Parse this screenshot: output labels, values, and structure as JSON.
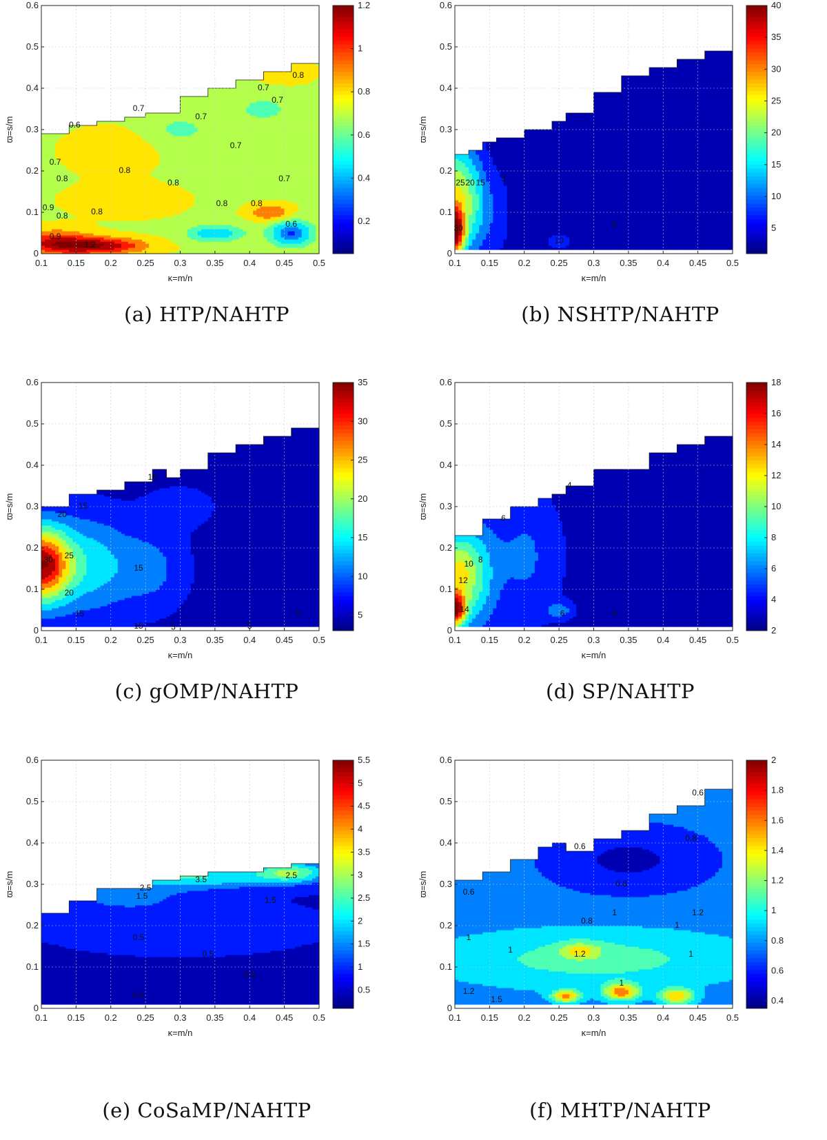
{
  "chart_data": [
    {
      "type": "heatmap",
      "caption": "(a) HTP/NAHTP",
      "xlabel": "κ=m/n",
      "ylabel": "ϖ=s/m",
      "xlim": [
        0.1,
        0.5
      ],
      "ylim": [
        0,
        0.6
      ],
      "x_ticks": [
        "0.1",
        "0.15",
        "0.2",
        "0.25",
        "0.3",
        "0.35",
        "0.4",
        "0.45",
        "0.5"
      ],
      "y_ticks": [
        "0",
        "0.1",
        "0.2",
        "0.3",
        "0.4",
        "0.5",
        "0.6"
      ],
      "colorbar": {
        "min": 0.05,
        "max": 1.2,
        "ticks": [
          "0.2",
          "0.4",
          "0.6",
          "0.8",
          "1",
          "1.2"
        ],
        "tick_values": [
          0.2,
          0.4,
          0.6,
          0.8,
          1,
          1.2
        ]
      },
      "boundary": [
        [
          0.1,
          0.29
        ],
        [
          0.14,
          0.31
        ],
        [
          0.18,
          0.32
        ],
        [
          0.22,
          0.33
        ],
        [
          0.25,
          0.34
        ],
        [
          0.3,
          0.38
        ],
        [
          0.34,
          0.4
        ],
        [
          0.38,
          0.42
        ],
        [
          0.42,
          0.44
        ],
        [
          0.46,
          0.46
        ],
        [
          0.5,
          0.47
        ]
      ],
      "ymin": 0.0,
      "base": 0.72,
      "blobs": [
        [
          0.18,
          0.02,
          0.07,
          0.02,
          0.45
        ],
        [
          0.12,
          0.03,
          0.05,
          0.03,
          0.3
        ],
        [
          0.43,
          0.1,
          0.03,
          0.02,
          0.25
        ],
        [
          0.46,
          0.05,
          0.03,
          0.03,
          -0.45
        ],
        [
          0.35,
          0.05,
          0.04,
          0.02,
          -0.3
        ],
        [
          0.2,
          0.25,
          0.06,
          0.05,
          0.12
        ],
        [
          0.22,
          0.13,
          0.08,
          0.04,
          0.1
        ],
        [
          0.42,
          0.35,
          0.05,
          0.04,
          -0.12
        ],
        [
          0.3,
          0.3,
          0.05,
          0.04,
          -0.12
        ],
        [
          0.45,
          0.44,
          0.04,
          0.03,
          0.1
        ]
      ],
      "contour_labels": [
        {
          "x": 0.148,
          "y": 0.31,
          "text": "0.6"
        },
        {
          "x": 0.24,
          "y": 0.35,
          "text": "0.7"
        },
        {
          "x": 0.33,
          "y": 0.33,
          "text": "0.7"
        },
        {
          "x": 0.12,
          "y": 0.22,
          "text": "0.7"
        },
        {
          "x": 0.13,
          "y": 0.18,
          "text": "0.8"
        },
        {
          "x": 0.22,
          "y": 0.2,
          "text": "0.8"
        },
        {
          "x": 0.29,
          "y": 0.17,
          "text": "0.8"
        },
        {
          "x": 0.18,
          "y": 0.1,
          "text": "0.8"
        },
        {
          "x": 0.38,
          "y": 0.26,
          "text": "0.7"
        },
        {
          "x": 0.44,
          "y": 0.37,
          "text": "0.7"
        },
        {
          "x": 0.42,
          "y": 0.4,
          "text": "0.7"
        },
        {
          "x": 0.47,
          "y": 0.43,
          "text": "0.8"
        },
        {
          "x": 0.11,
          "y": 0.11,
          "text": "0.9"
        },
        {
          "x": 0.13,
          "y": 0.09,
          "text": "0.8"
        },
        {
          "x": 0.36,
          "y": 0.12,
          "text": "0.8"
        },
        {
          "x": 0.12,
          "y": 0.04,
          "text": "0.9"
        },
        {
          "x": 0.17,
          "y": 0.02,
          "text": "1.2"
        },
        {
          "x": 0.46,
          "y": 0.07,
          "text": "0.6"
        },
        {
          "x": 0.41,
          "y": 0.12,
          "text": "0.8"
        },
        {
          "x": 0.45,
          "y": 0.18,
          "text": "0.7"
        }
      ]
    },
    {
      "type": "heatmap",
      "caption": "(b) NSHTP/NAHTP",
      "xlabel": "κ=m/n",
      "ylabel": "ϖ=s/m",
      "xlim": [
        0.1,
        0.5
      ],
      "ylim": [
        0,
        0.6
      ],
      "x_ticks": [
        "0.1",
        "0.15",
        "0.2",
        "0.25",
        "0.3",
        "0.35",
        "0.4",
        "0.45",
        "0.5"
      ],
      "y_ticks": [
        "0",
        "0.1",
        "0.2",
        "0.3",
        "0.4",
        "0.5",
        "0.6"
      ],
      "colorbar": {
        "min": 1,
        "max": 40,
        "ticks": [
          "5",
          "10",
          "15",
          "20",
          "25",
          "30",
          "35",
          "40"
        ],
        "tick_values": [
          5,
          10,
          15,
          20,
          25,
          30,
          35,
          40
        ]
      },
      "boundary": [
        [
          0.1,
          0.24
        ],
        [
          0.12,
          0.25
        ],
        [
          0.14,
          0.27
        ],
        [
          0.16,
          0.28
        ],
        [
          0.2,
          0.3
        ],
        [
          0.24,
          0.32
        ],
        [
          0.26,
          0.34
        ],
        [
          0.3,
          0.39
        ],
        [
          0.34,
          0.43
        ],
        [
          0.38,
          0.45
        ],
        [
          0.42,
          0.47
        ],
        [
          0.46,
          0.49
        ],
        [
          0.5,
          0.51
        ]
      ],
      "ymin": 0.01,
      "base": 3,
      "blobs": [
        [
          0.1,
          0.05,
          0.015,
          0.06,
          30
        ],
        [
          0.1,
          0.15,
          0.025,
          0.12,
          20
        ],
        [
          0.13,
          0.12,
          0.02,
          0.12,
          10
        ],
        [
          0.16,
          0.1,
          0.02,
          0.1,
          4
        ],
        [
          0.25,
          0.03,
          0.02,
          0.02,
          4
        ]
      ],
      "contour_labels": [
        {
          "x": 0.108,
          "y": 0.17,
          "text": "25"
        },
        {
          "x": 0.122,
          "y": 0.17,
          "text": "20"
        },
        {
          "x": 0.137,
          "y": 0.17,
          "text": "15"
        },
        {
          "x": 0.105,
          "y": 0.06,
          "text": "30"
        },
        {
          "x": 0.17,
          "y": 0.18,
          "text": "5"
        },
        {
          "x": 0.25,
          "y": 0.03,
          "text": "10"
        },
        {
          "x": 0.33,
          "y": 0.07,
          "text": "5"
        }
      ]
    },
    {
      "type": "heatmap",
      "caption": "(c) gOMP/NAHTP",
      "xlabel": "κ=m/n",
      "ylabel": "ϖ=s/m",
      "xlim": [
        0.1,
        0.5
      ],
      "ylim": [
        0,
        0.6
      ],
      "x_ticks": [
        "0.1",
        "0.15",
        "0.2",
        "0.25",
        "0.3",
        "0.35",
        "0.4",
        "0.45",
        "0.5"
      ],
      "y_ticks": [
        "0",
        "0.1",
        "0.2",
        "0.3",
        "0.4",
        "0.5",
        "0.6"
      ],
      "colorbar": {
        "min": 3,
        "max": 35,
        "ticks": [
          "5",
          "10",
          "15",
          "20",
          "25",
          "30",
          "35"
        ],
        "tick_values": [
          5,
          10,
          15,
          20,
          25,
          30,
          35
        ]
      },
      "boundary": [
        [
          0.1,
          0.3
        ],
        [
          0.14,
          0.33
        ],
        [
          0.18,
          0.34
        ],
        [
          0.22,
          0.36
        ],
        [
          0.26,
          0.39
        ],
        [
          0.28,
          0.37
        ],
        [
          0.3,
          0.39
        ],
        [
          0.34,
          0.43
        ],
        [
          0.38,
          0.45
        ],
        [
          0.42,
          0.47
        ],
        [
          0.46,
          0.49
        ],
        [
          0.5,
          0.51
        ]
      ],
      "ymin": 0.01,
      "base": 5,
      "blobs": [
        [
          0.1,
          0.16,
          0.04,
          0.09,
          28
        ],
        [
          0.17,
          0.16,
          0.06,
          0.12,
          9
        ],
        [
          0.26,
          0.15,
          0.05,
          0.1,
          5
        ],
        [
          0.3,
          0.3,
          0.05,
          0.05,
          3
        ],
        [
          0.45,
          0.2,
          0.04,
          0.1,
          -1.5
        ]
      ],
      "contour_labels": [
        {
          "x": 0.11,
          "y": 0.17,
          "text": "30"
        },
        {
          "x": 0.14,
          "y": 0.18,
          "text": "25"
        },
        {
          "x": 0.14,
          "y": 0.09,
          "text": "20"
        },
        {
          "x": 0.155,
          "y": 0.04,
          "text": "15"
        },
        {
          "x": 0.13,
          "y": 0.28,
          "text": "20"
        },
        {
          "x": 0.16,
          "y": 0.3,
          "text": "15"
        },
        {
          "x": 0.24,
          "y": 0.15,
          "text": "15"
        },
        {
          "x": 0.26,
          "y": 0.37,
          "text": "10"
        },
        {
          "x": 0.24,
          "y": 0.01,
          "text": "15"
        },
        {
          "x": 0.29,
          "y": 0.008,
          "text": "5"
        },
        {
          "x": 0.4,
          "y": 0.01,
          "text": "5"
        },
        {
          "x": 0.47,
          "y": 0.04,
          "text": "5"
        }
      ]
    },
    {
      "type": "heatmap",
      "caption": "(d) SP/NAHTP",
      "xlabel": "κ=m/n",
      "ylabel": "ϖ=s/m",
      "xlim": [
        0.1,
        0.5
      ],
      "ylim": [
        0,
        0.6
      ],
      "x_ticks": [
        "0.1",
        "0.15",
        "0.2",
        "0.25",
        "0.3",
        "0.35",
        "0.4",
        "0.45",
        "0.5"
      ],
      "y_ticks": [
        "0",
        "0.1",
        "0.2",
        "0.3",
        "0.4",
        "0.5",
        "0.6"
      ],
      "colorbar": {
        "min": 2,
        "max": 18,
        "ticks": [
          "2",
          "4",
          "6",
          "8",
          "10",
          "12",
          "14",
          "16",
          "18"
        ],
        "tick_values": [
          2,
          4,
          6,
          8,
          10,
          12,
          14,
          16,
          18
        ]
      },
      "boundary": [
        [
          0.1,
          0.23
        ],
        [
          0.14,
          0.27
        ],
        [
          0.18,
          0.3
        ],
        [
          0.22,
          0.32
        ],
        [
          0.24,
          0.33
        ],
        [
          0.26,
          0.35
        ],
        [
          0.3,
          0.39
        ],
        [
          0.34,
          0.39
        ],
        [
          0.38,
          0.43
        ],
        [
          0.42,
          0.45
        ],
        [
          0.46,
          0.47
        ],
        [
          0.5,
          0.47
        ]
      ],
      "ymin": 0.01,
      "base": 3,
      "blobs": [
        [
          0.1,
          0.05,
          0.015,
          0.04,
          12
        ],
        [
          0.1,
          0.14,
          0.025,
          0.1,
          7
        ],
        [
          0.13,
          0.13,
          0.03,
          0.13,
          5
        ],
        [
          0.2,
          0.18,
          0.05,
          0.15,
          2.5
        ],
        [
          0.25,
          0.05,
          0.02,
          0.02,
          3
        ]
      ],
      "contour_labels": [
        {
          "x": 0.112,
          "y": 0.12,
          "text": "12"
        },
        {
          "x": 0.12,
          "y": 0.16,
          "text": "10"
        },
        {
          "x": 0.137,
          "y": 0.17,
          "text": "8"
        },
        {
          "x": 0.114,
          "y": 0.05,
          "text": "14"
        },
        {
          "x": 0.17,
          "y": 0.27,
          "text": "6"
        },
        {
          "x": 0.265,
          "y": 0.35,
          "text": "4"
        },
        {
          "x": 0.33,
          "y": 0.04,
          "text": "4"
        },
        {
          "x": 0.255,
          "y": 0.04,
          "text": "6"
        }
      ]
    },
    {
      "type": "heatmap",
      "caption": "(e) CoSaMP/NAHTP",
      "xlabel": "κ=m/n",
      "ylabel": "ϖ=s/m",
      "xlim": [
        0.1,
        0.5
      ],
      "ylim": [
        0,
        0.6
      ],
      "x_ticks": [
        "0.1",
        "0.15",
        "0.2",
        "0.25",
        "0.3",
        "0.35",
        "0.4",
        "0.45",
        "0.5"
      ],
      "y_ticks": [
        "0",
        "0.1",
        "0.2",
        "0.3",
        "0.4",
        "0.5",
        "0.6"
      ],
      "colorbar": {
        "min": 0.1,
        "max": 5.5,
        "ticks": [
          "0.5",
          "1",
          "1.5",
          "2",
          "2.5",
          "3",
          "3.5",
          "4",
          "4.5",
          "5",
          "5.5"
        ],
        "tick_values": [
          0.5,
          1,
          1.5,
          2,
          2.5,
          3,
          3.5,
          4,
          4.5,
          5,
          5.5
        ]
      },
      "boundary": [
        [
          0.1,
          0.23
        ],
        [
          0.14,
          0.26
        ],
        [
          0.18,
          0.29
        ],
        [
          0.22,
          0.29
        ],
        [
          0.26,
          0.31
        ],
        [
          0.3,
          0.32
        ],
        [
          0.34,
          0.33
        ],
        [
          0.38,
          0.33
        ],
        [
          0.42,
          0.34
        ],
        [
          0.46,
          0.35
        ],
        [
          0.5,
          0.35
        ]
      ],
      "ymin": 0.01,
      "base": 0.6,
      "blobs": [
        [
          0.32,
          0.32,
          0.12,
          0.03,
          1.7
        ],
        [
          0.46,
          0.33,
          0.05,
          0.025,
          2.0
        ],
        [
          0.3,
          0.2,
          0.15,
          0.05,
          0.4
        ],
        [
          0.22,
          0.27,
          0.08,
          0.03,
          0.8
        ]
      ],
      "contour_labels": [
        {
          "x": 0.25,
          "y": 0.29,
          "text": "2.5"
        },
        {
          "x": 0.33,
          "y": 0.31,
          "text": "3.5"
        },
        {
          "x": 0.46,
          "y": 0.32,
          "text": "2.5"
        },
        {
          "x": 0.245,
          "y": 0.27,
          "text": "1.5"
        },
        {
          "x": 0.43,
          "y": 0.26,
          "text": "1.5"
        },
        {
          "x": 0.24,
          "y": 0.17,
          "text": "0.5"
        },
        {
          "x": 0.34,
          "y": 0.13,
          "text": "0.5"
        },
        {
          "x": 0.4,
          "y": 0.08,
          "text": "0.5"
        },
        {
          "x": 0.24,
          "y": 0.03,
          "text": "0.5"
        }
      ]
    },
    {
      "type": "heatmap",
      "caption": "(f) MHTP/NAHTP",
      "xlabel": "κ=m/n",
      "ylabel": "ϖ=s/m",
      "xlim": [
        0.1,
        0.5
      ],
      "ylim": [
        0,
        0.6
      ],
      "x_ticks": [
        "0.1",
        "0.15",
        "0.2",
        "0.25",
        "0.3",
        "0.35",
        "0.4",
        "0.45",
        "0.5"
      ],
      "y_ticks": [
        "0",
        "0.1",
        "0.2",
        "0.3",
        "0.4",
        "0.5",
        "0.6"
      ],
      "colorbar": {
        "min": 0.35,
        "max": 2,
        "ticks": [
          "0.4",
          "0.6",
          "0.8",
          "1",
          "1.2",
          "1.4",
          "1.6",
          "1.8",
          "2"
        ],
        "tick_values": [
          0.4,
          0.6,
          0.8,
          1,
          1.2,
          1.4,
          1.6,
          1.8,
          2
        ]
      },
      "boundary": [
        [
          0.1,
          0.31
        ],
        [
          0.14,
          0.33
        ],
        [
          0.18,
          0.36
        ],
        [
          0.22,
          0.39
        ],
        [
          0.26,
          0.4
        ],
        [
          0.24,
          0.4
        ],
        [
          0.26,
          0.38
        ],
        [
          0.3,
          0.41
        ],
        [
          0.34,
          0.43
        ],
        [
          0.38,
          0.47
        ],
        [
          0.42,
          0.49
        ],
        [
          0.46,
          0.53
        ],
        [
          0.5,
          0.53
        ]
      ],
      "ymin": 0.01,
      "base": 0.72,
      "blobs": [
        [
          0.3,
          0.12,
          0.25,
          0.08,
          0.35
        ],
        [
          0.26,
          0.03,
          0.02,
          0.015,
          0.8
        ],
        [
          0.34,
          0.04,
          0.025,
          0.02,
          0.8
        ],
        [
          0.42,
          0.03,
          0.025,
          0.02,
          0.7
        ],
        [
          0.28,
          0.14,
          0.03,
          0.02,
          0.4
        ],
        [
          0.35,
          0.36,
          0.1,
          0.07,
          -0.25
        ]
      ],
      "contour_labels": [
        {
          "x": 0.12,
          "y": 0.28,
          "text": "0.6"
        },
        {
          "x": 0.28,
          "y": 0.39,
          "text": "0.6"
        },
        {
          "x": 0.45,
          "y": 0.52,
          "text": "0.6"
        },
        {
          "x": 0.34,
          "y": 0.3,
          "text": "0.8"
        },
        {
          "x": 0.44,
          "y": 0.41,
          "text": "0.8"
        },
        {
          "x": 0.29,
          "y": 0.21,
          "text": "0.8"
        },
        {
          "x": 0.33,
          "y": 0.23,
          "text": "1"
        },
        {
          "x": 0.42,
          "y": 0.2,
          "text": "1"
        },
        {
          "x": 0.12,
          "y": 0.17,
          "text": "1"
        },
        {
          "x": 0.18,
          "y": 0.14,
          "text": "1"
        },
        {
          "x": 0.28,
          "y": 0.13,
          "text": "1.2"
        },
        {
          "x": 0.34,
          "y": 0.06,
          "text": "1"
        },
        {
          "x": 0.12,
          "y": 0.04,
          "text": "1.2"
        },
        {
          "x": 0.45,
          "y": 0.23,
          "text": "1.2"
        },
        {
          "x": 0.44,
          "y": 0.13,
          "text": "1"
        },
        {
          "x": 0.16,
          "y": 0.02,
          "text": "1.5"
        }
      ]
    }
  ]
}
